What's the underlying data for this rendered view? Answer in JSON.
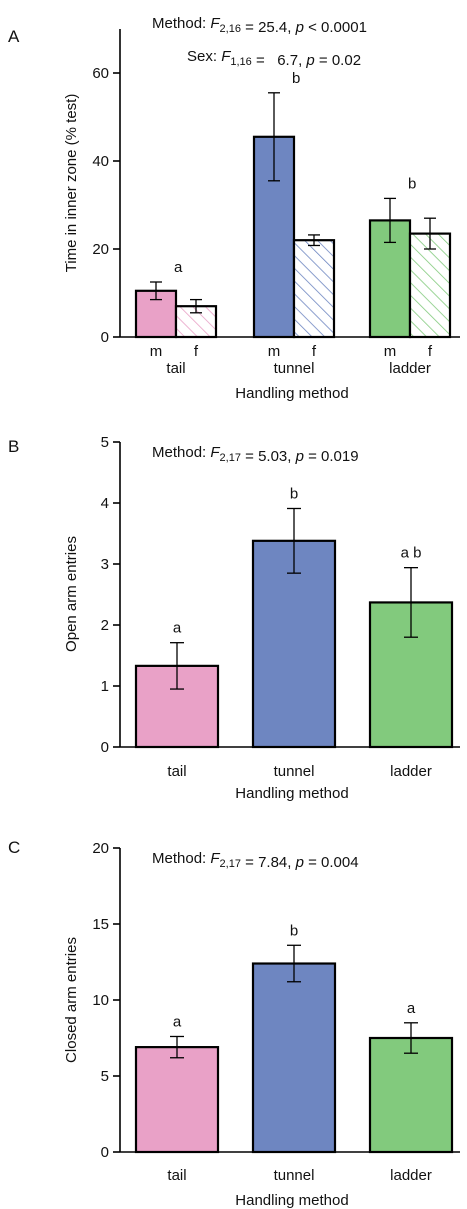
{
  "figure": {
    "panels": [
      "A",
      "B",
      "C"
    ]
  },
  "chart_data": [
    {
      "panel": "A",
      "type": "bar",
      "ylabel": "Time in inner zone (% test)",
      "xlabel": "Handling method",
      "ylim": [
        0,
        70
      ],
      "yticks": [
        0,
        20,
        40,
        60
      ],
      "categories": [
        "tail",
        "tunnel",
        "ladder"
      ],
      "sub_categories": [
        "m",
        "f"
      ],
      "colors": {
        "tail": "#e9a1c7",
        "tunnel": "#6e86c1",
        "ladder": "#82ca7d"
      },
      "series": [
        {
          "name": "m",
          "values": [
            10.5,
            45.5,
            26.5
          ],
          "err": [
            2,
            10,
            5
          ],
          "fill": "solid"
        },
        {
          "name": "f",
          "values": [
            7,
            22,
            23.5
          ],
          "err": [
            1.5,
            1.2,
            3.5
          ],
          "fill": "hatched"
        }
      ],
      "significance_letters": [
        "a",
        "b",
        "b"
      ],
      "stats": [
        {
          "prefix": "Method: ",
          "stat": "F",
          "sub": "2,16",
          "rest": " = 25.4, ",
          "p": "p",
          "prest": " < 0.0001"
        },
        {
          "prefix": "Sex: ",
          "stat": "F",
          "sub": "1,16",
          "rest": " =   6.7, ",
          "p": "p",
          "prest": " = 0.02"
        }
      ],
      "grid": false
    },
    {
      "panel": "B",
      "type": "bar",
      "ylabel": "Open arm entries",
      "xlabel": "Handling method",
      "ylim": [
        0,
        5
      ],
      "yticks": [
        0,
        1,
        2,
        3,
        4,
        5
      ],
      "categories": [
        "tail",
        "tunnel",
        "ladder"
      ],
      "colors": {
        "tail": "#e9a1c7",
        "tunnel": "#6e86c1",
        "ladder": "#82ca7d"
      },
      "values": [
        1.33,
        3.38,
        2.37
      ],
      "err": [
        0.38,
        0.53,
        0.57
      ],
      "significance_letters": [
        "a",
        "b",
        "a b"
      ],
      "stats": [
        {
          "prefix": "Method: ",
          "stat": "F",
          "sub": "2,17",
          "rest": " = 5.03, ",
          "p": "p",
          "prest": " = 0.019"
        }
      ],
      "grid": false
    },
    {
      "panel": "C",
      "type": "bar",
      "ylabel": "Closed arm entries",
      "xlabel": "Handling method",
      "ylim": [
        0,
        20
      ],
      "yticks": [
        0,
        5,
        10,
        15,
        20
      ],
      "categories": [
        "tail",
        "tunnel",
        "ladder"
      ],
      "colors": {
        "tail": "#e9a1c7",
        "tunnel": "#6e86c1",
        "ladder": "#82ca7d"
      },
      "values": [
        6.9,
        12.4,
        7.5
      ],
      "err": [
        0.7,
        1.2,
        1.0
      ],
      "significance_letters": [
        "a",
        "b",
        "a"
      ],
      "stats": [
        {
          "prefix": "Method: ",
          "stat": "F",
          "sub": "2,17",
          "rest": " = 7.84, ",
          "p": "p",
          "prest": " = 0.004"
        }
      ],
      "grid": false
    }
  ]
}
